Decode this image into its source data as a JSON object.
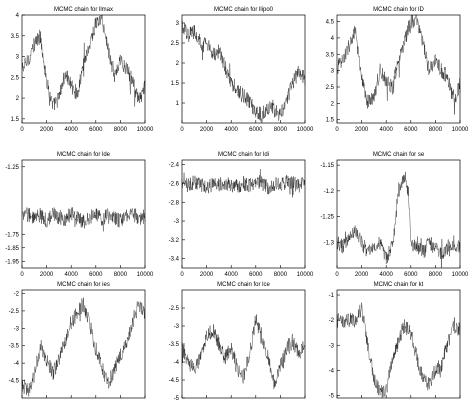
{
  "chart_data": [
    {
      "type": "line",
      "title": "MCMC chain for llmax",
      "xlim": [
        0,
        10000
      ],
      "ylim": [
        1.4,
        4.0
      ],
      "xticks": [
        "0",
        "2000",
        "4000",
        "6000",
        "8000",
        "10000"
      ],
      "yticks": [
        "1.5",
        "2",
        "2.5",
        "3",
        "3.5",
        "4"
      ],
      "series": [
        {
          "x": [
            0,
            500,
            1000,
            1500,
            2000,
            2500,
            3000,
            3500,
            4000,
            4500,
            5000,
            5500,
            6000,
            6500,
            7000,
            7500,
            8000,
            8500,
            9000,
            9500,
            10000
          ],
          "values": [
            2.7,
            2.9,
            3.3,
            3.5,
            2.4,
            1.8,
            2.0,
            2.6,
            2.3,
            2.1,
            2.8,
            3.3,
            3.8,
            3.9,
            3.2,
            2.5,
            2.9,
            2.7,
            2.4,
            1.9,
            2.3
          ]
        }
      ]
    },
    {
      "type": "line",
      "title": "MCMC chain for llipo0",
      "xlim": [
        0,
        10000
      ],
      "ylim": [
        0.5,
        3.2
      ],
      "xticks": [
        "0",
        "2000",
        "4000",
        "6000",
        "8000",
        "10000"
      ],
      "yticks": [
        "1",
        "1.5",
        "2",
        "2.5",
        "3"
      ],
      "series": [
        {
          "x": [
            0,
            500,
            1000,
            1500,
            2000,
            2500,
            3000,
            3500,
            4000,
            4500,
            5000,
            5500,
            6000,
            6500,
            7000,
            7500,
            8000,
            8500,
            9000,
            9500,
            10000
          ],
          "values": [
            2.9,
            2.7,
            2.8,
            2.5,
            2.5,
            2.2,
            2.3,
            1.9,
            1.5,
            1.3,
            1.2,
            1.0,
            0.8,
            0.7,
            0.9,
            0.8,
            0.7,
            1.1,
            1.5,
            1.8,
            1.6
          ]
        }
      ]
    },
    {
      "type": "line",
      "title": "MCMC chain for lD",
      "xlim": [
        0,
        10000
      ],
      "ylim": [
        1.4,
        4.7
      ],
      "xticks": [
        "0",
        "2000",
        "4000",
        "6000",
        "8000",
        "10000"
      ],
      "yticks": [
        "1.5",
        "2",
        "2.5",
        "3",
        "3.5",
        "4",
        "4.5"
      ],
      "series": [
        {
          "x": [
            0,
            500,
            1000,
            1500,
            2000,
            2500,
            3000,
            3500,
            4000,
            4500,
            5000,
            5500,
            6000,
            6500,
            7000,
            7500,
            8000,
            8500,
            9000,
            9500,
            10000
          ],
          "values": [
            3.1,
            3.3,
            3.8,
            4.2,
            2.7,
            2.0,
            2.2,
            3.0,
            2.7,
            2.5,
            3.3,
            3.9,
            4.5,
            4.6,
            3.8,
            3.0,
            3.3,
            3.0,
            2.8,
            2.0,
            2.6
          ]
        }
      ]
    },
    {
      "type": "line",
      "title": "MCMC chain for lde",
      "xlim": [
        0,
        10000
      ],
      "ylim": [
        -2.0,
        -1.2
      ],
      "xticks": [
        "0",
        "2000",
        "4000",
        "6000",
        "8000",
        "10000"
      ],
      "yticks": [
        "-1.25",
        "-1.75",
        "-1.85",
        "-1.95"
      ],
      "series": [
        {
          "x": [
            0,
            500,
            1000,
            1500,
            2000,
            2500,
            3000,
            3500,
            4000,
            4500,
            5000,
            5500,
            6000,
            6500,
            7000,
            7500,
            8000,
            8500,
            9000,
            9500,
            10000
          ],
          "values": [
            -1.62,
            -1.6,
            -1.63,
            -1.61,
            -1.65,
            -1.6,
            -1.62,
            -1.64,
            -1.6,
            -1.63,
            -1.66,
            -1.62,
            -1.6,
            -1.64,
            -1.61,
            -1.63,
            -1.65,
            -1.62,
            -1.6,
            -1.63,
            -1.62
          ]
        }
      ]
    },
    {
      "type": "line",
      "title": "MCMC chain for ldi",
      "xlim": [
        0,
        10000
      ],
      "ylim": [
        -3.5,
        -2.35
      ],
      "xticks": [
        "0",
        "2000",
        "4000",
        "6000",
        "8000",
        "10000"
      ],
      "yticks": [
        "-2.4",
        "-2.6",
        "-2.8",
        "-3",
        "-3.2",
        "-3.4"
      ],
      "series": [
        {
          "x": [
            0,
            500,
            1000,
            1500,
            2000,
            2500,
            3000,
            3500,
            4000,
            4500,
            5000,
            5500,
            6000,
            6500,
            7000,
            7500,
            8000,
            8500,
            9000,
            9500,
            10000
          ],
          "values": [
            -2.6,
            -2.62,
            -2.58,
            -2.6,
            -2.65,
            -2.6,
            -2.62,
            -2.59,
            -2.61,
            -2.63,
            -2.6,
            -2.62,
            -2.58,
            -2.6,
            -2.64,
            -2.6,
            -2.61,
            -2.59,
            -2.6,
            -2.62,
            -2.6
          ]
        }
      ]
    },
    {
      "type": "line",
      "title": "MCMC chain for se",
      "xlim": [
        0,
        10000
      ],
      "ylim": [
        -1.35,
        -1.14
      ],
      "xticks": [
        "0",
        "2000",
        "4000",
        "6000",
        "8000",
        "10000"
      ],
      "yticks": [
        "-1.15",
        "-1.2",
        "-1.25",
        "-1.3"
      ],
      "series": [
        {
          "x": [
            0,
            500,
            1000,
            1500,
            2000,
            2500,
            3000,
            3500,
            4000,
            4500,
            5000,
            5500,
            5800,
            6000,
            6500,
            7000,
            7500,
            8000,
            8500,
            9000,
            9500,
            10000
          ],
          "values": [
            -1.3,
            -1.31,
            -1.29,
            -1.28,
            -1.3,
            -1.32,
            -1.31,
            -1.3,
            -1.33,
            -1.31,
            -1.2,
            -1.17,
            -1.2,
            -1.3,
            -1.31,
            -1.32,
            -1.3,
            -1.31,
            -1.32,
            -1.31,
            -1.3,
            -1.31
          ]
        }
      ]
    },
    {
      "type": "line",
      "title": "MCMC chain for ies",
      "xlim": [
        0,
        10000
      ],
      "ylim": [
        -5.0,
        -1.9
      ],
      "xticks": [
        "0",
        "2000",
        "4000",
        "6000",
        "8000",
        "10000"
      ],
      "yticks": [
        "-2",
        "-2.5",
        "-3",
        "-3.5",
        "-4",
        "-4.5"
      ],
      "series": [
        {
          "x": [
            0,
            500,
            1000,
            1500,
            2000,
            2500,
            3000,
            3500,
            4000,
            4500,
            5000,
            5500,
            6000,
            6500,
            7000,
            7500,
            8000,
            8500,
            9000,
            9500,
            10000
          ],
          "values": [
            -4.6,
            -4.8,
            -4.4,
            -3.5,
            -3.9,
            -4.3,
            -3.9,
            -3.4,
            -2.9,
            -2.5,
            -2.3,
            -2.9,
            -3.6,
            -4.1,
            -4.6,
            -4.2,
            -3.8,
            -3.4,
            -2.8,
            -2.3,
            -2.6
          ]
        }
      ]
    },
    {
      "type": "line",
      "title": "MCMC chain for lce",
      "xlim": [
        0,
        10000
      ],
      "ylim": [
        -5.0,
        -2.0
      ],
      "xticks": [
        "0",
        "2000",
        "4000",
        "6000",
        "8000",
        "10000"
      ],
      "yticks": [
        "-2.5",
        "-3",
        "-3.5",
        "-4",
        "-4.5",
        "-5"
      ],
      "series": [
        {
          "x": [
            0,
            500,
            1000,
            1500,
            2000,
            2500,
            3000,
            3500,
            4000,
            4500,
            5000,
            5500,
            6000,
            6500,
            7000,
            7500,
            8000,
            8500,
            9000,
            9500,
            10000
          ],
          "values": [
            -3.6,
            -4.0,
            -4.2,
            -3.9,
            -3.3,
            -3.1,
            -3.5,
            -3.9,
            -3.6,
            -4.2,
            -4.4,
            -3.8,
            -2.8,
            -3.3,
            -3.9,
            -4.6,
            -4.1,
            -3.7,
            -3.4,
            -3.8,
            -3.5
          ]
        }
      ]
    },
    {
      "type": "line",
      "title": "MCMC chain for kt",
      "xlim": [
        0,
        10000
      ],
      "ylim": [
        -5.1,
        -0.8
      ],
      "xticks": [
        "0",
        "2000",
        "4000",
        "6000",
        "8000",
        "10000"
      ],
      "yticks": [
        "-1",
        "-2",
        "-3",
        "-4",
        "-5"
      ],
      "series": [
        {
          "x": [
            0,
            500,
            1000,
            1500,
            2000,
            2500,
            3000,
            3500,
            4000,
            4500,
            5000,
            5500,
            6000,
            6500,
            7000,
            7500,
            8000,
            8500,
            9000,
            9500,
            10000
          ],
          "values": [
            -2.0,
            -2.1,
            -2.0,
            -2.0,
            -1.5,
            -3.0,
            -4.3,
            -4.9,
            -4.8,
            -3.6,
            -2.8,
            -2.2,
            -2.5,
            -3.5,
            -4.4,
            -4.6,
            -4.0,
            -3.8,
            -2.9,
            -2.2,
            -2.4
          ]
        }
      ]
    }
  ]
}
